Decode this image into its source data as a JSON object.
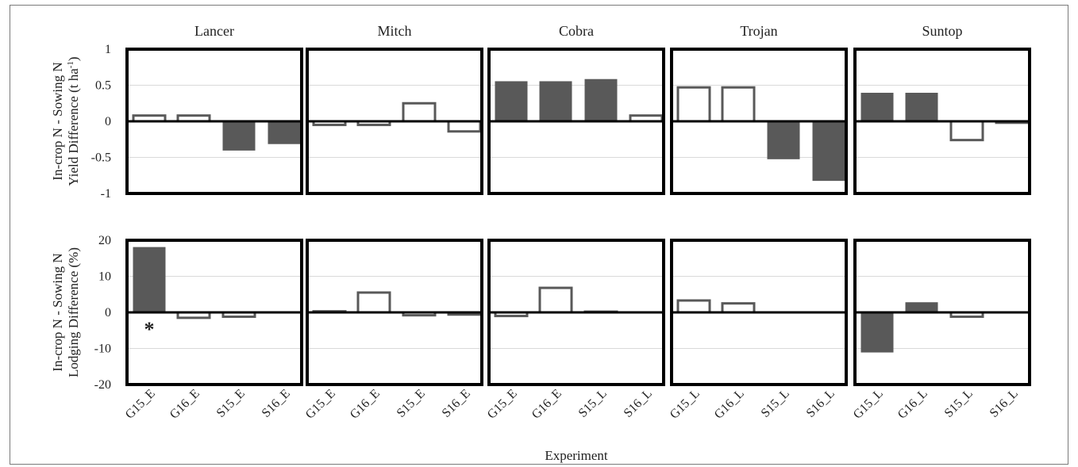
{
  "chart_data": {
    "type": "bar",
    "xlabel": "Experiment",
    "legend": "none",
    "grid": true,
    "colors": {
      "sowing_higher_fill": "#595959",
      "incrop_higher_fill": "#ffffff",
      "outline": "#595959",
      "frame": "#000000",
      "grid": "#d9d9d9"
    },
    "rows": [
      {
        "ylabel_lines": [
          "In-crop N - Sowing N",
          "Yield Difference (t ha",
          "-1",
          ")"
        ],
        "ylim": [
          -1,
          1
        ],
        "ticks": [
          1,
          0.5,
          0,
          -0.5,
          -1
        ],
        "tick_labels": [
          "1",
          "0.5",
          "0",
          "-0.5",
          "-1"
        ]
      },
      {
        "ylabel_lines": [
          "In-crop N - Sowing N",
          "Lodging Difference (%)"
        ],
        "ylim": [
          -20,
          20
        ],
        "ticks": [
          20,
          10,
          0,
          -10,
          -20
        ],
        "tick_labels": [
          "20",
          "10",
          "0",
          "-10",
          "-20"
        ]
      }
    ],
    "panels": [
      {
        "title": "Lancer",
        "categories": [
          "G15_E",
          "G16_E",
          "S15_E",
          "S16_E"
        ],
        "yield": [
          0.08,
          0.08,
          -0.4,
          -0.31
        ],
        "yield_filled": [
          false,
          false,
          true,
          true
        ],
        "lodging": [
          18,
          -1.5,
          -1.2,
          0
        ],
        "lodging_filled": [
          true,
          false,
          false,
          false
        ],
        "lodging_marks": [
          "*",
          "",
          "",
          ""
        ]
      },
      {
        "title": "Mitch",
        "categories": [
          "G15_E",
          "G16_E",
          "S15_E",
          "S16_E"
        ],
        "yield": [
          -0.05,
          -0.05,
          0.25,
          -0.14
        ],
        "yield_filled": [
          false,
          false,
          false,
          false
        ],
        "lodging": [
          0.3,
          5.5,
          -0.8,
          -0.6
        ],
        "lodging_filled": [
          false,
          false,
          false,
          false
        ],
        "lodging_marks": [
          "",
          "",
          "",
          ""
        ]
      },
      {
        "title": "Cobra",
        "categories": [
          "G15_E",
          "G16_E",
          "S15_L",
          "S16_L"
        ],
        "yield": [
          0.55,
          0.55,
          0.58,
          0.08
        ],
        "yield_filled": [
          true,
          true,
          true,
          false
        ],
        "lodging": [
          -1,
          6.8,
          0.2,
          0.1
        ],
        "lodging_filled": [
          false,
          false,
          false,
          false
        ],
        "lodging_marks": [
          "",
          "",
          "",
          ""
        ]
      },
      {
        "title": "Trojan",
        "categories": [
          "G15_L",
          "G16_L",
          "S15_L",
          "S16_L"
        ],
        "yield": [
          0.47,
          0.47,
          -0.52,
          -0.82
        ],
        "yield_filled": [
          false,
          false,
          true,
          true
        ],
        "lodging": [
          3.3,
          2.5,
          0,
          0
        ],
        "lodging_filled": [
          false,
          false,
          false,
          false
        ],
        "lodging_marks": [
          "",
          "",
          "",
          ""
        ]
      },
      {
        "title": "Suntop",
        "categories": [
          "G15_L",
          "G16_L",
          "S15_L",
          "S16_L"
        ],
        "yield": [
          0.39,
          0.39,
          -0.26,
          -0.02
        ],
        "yield_filled": [
          true,
          true,
          false,
          false
        ],
        "lodging": [
          -11,
          2.7,
          -1.2,
          0
        ],
        "lodging_filled": [
          true,
          true,
          false,
          false
        ],
        "lodging_marks": [
          "",
          "",
          "",
          ""
        ]
      }
    ]
  }
}
